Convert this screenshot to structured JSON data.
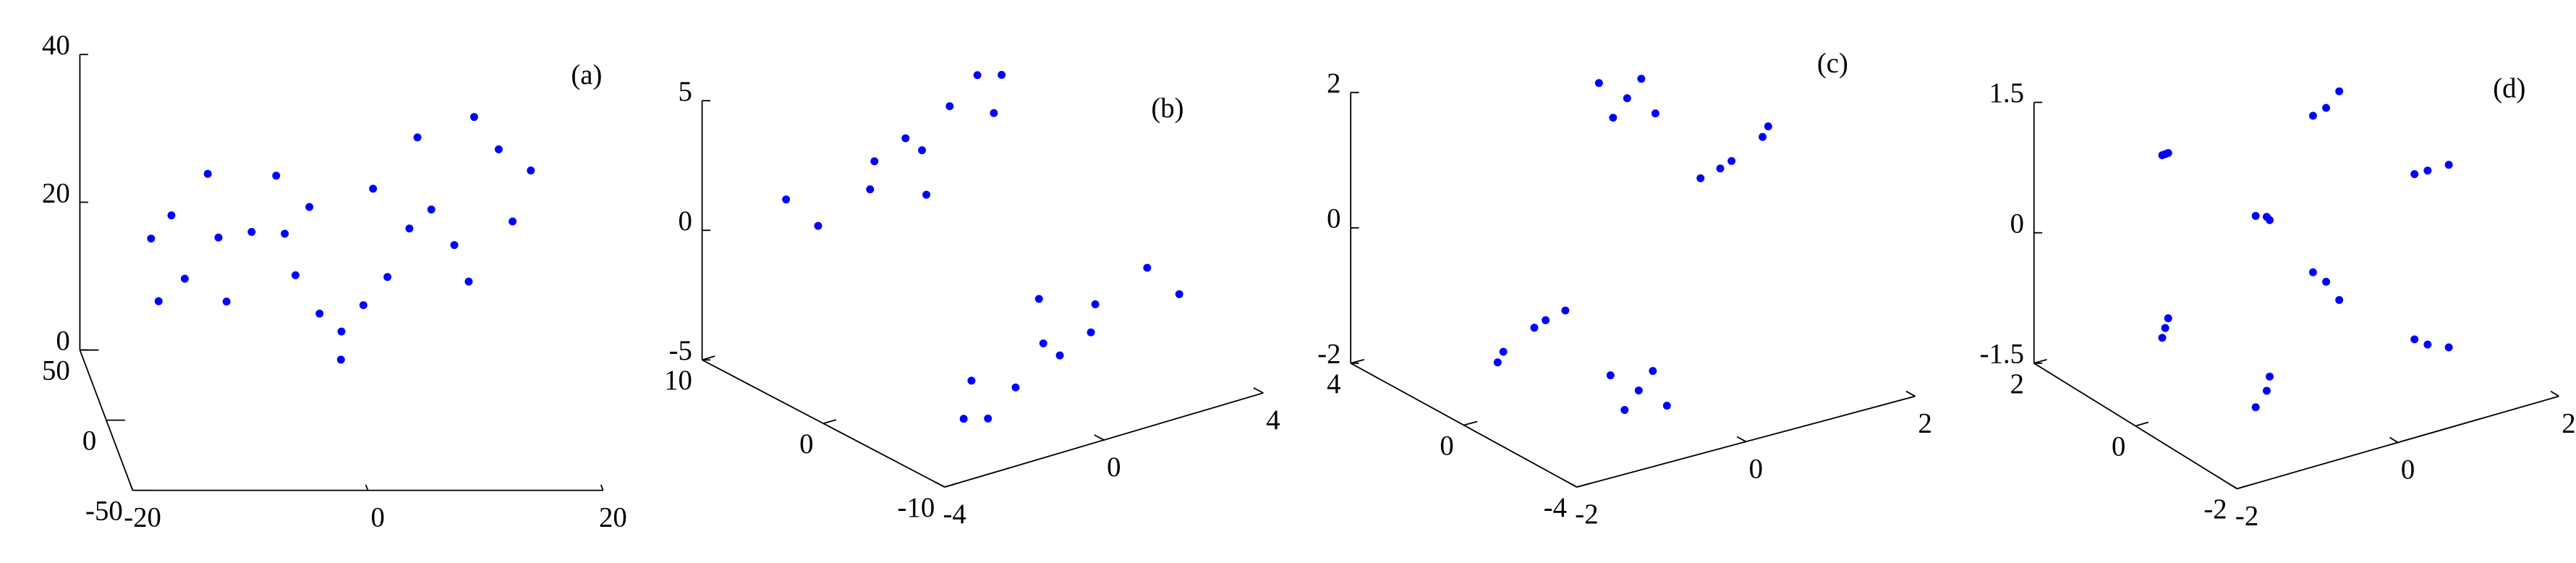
{
  "chart_data": [
    {
      "type": "scatter3d",
      "label": "(a)",
      "color": "#0000ff",
      "xlim": [
        -20,
        20
      ],
      "ylim": [
        -50,
        50
      ],
      "zlim": [
        0,
        40
      ],
      "xticks": [
        -20,
        0,
        20
      ],
      "yticks": [
        -50,
        0,
        50
      ],
      "zticks": [
        0,
        20,
        40
      ],
      "x": [
        -8,
        -15,
        -14,
        -10,
        -4,
        -3,
        -6,
        -12,
        -17,
        -16,
        -11,
        -5,
        8,
        14,
        15,
        11,
        4,
        3,
        7,
        12,
        17,
        10,
        6,
        0,
        -2,
        2,
        0
      ],
      "y": [
        -8,
        -12,
        -15,
        -5,
        -2,
        -6,
        -10,
        -14,
        -18,
        -10,
        -12,
        -4,
        8,
        14,
        10,
        4,
        2,
        7,
        12,
        16,
        20,
        9,
        5,
        0,
        -3,
        3,
        1
      ],
      "z": [
        27,
        30,
        22,
        17,
        20,
        30,
        35,
        36,
        28,
        18,
        27,
        26,
        27,
        34,
        25,
        18,
        19,
        30,
        36,
        38,
        30,
        22,
        25,
        12,
        15,
        15,
        8
      ]
    },
    {
      "type": "scatter3d",
      "label": "(b)",
      "color": "#0000ff",
      "xlim": [
        -4,
        4
      ],
      "ylim": [
        -10,
        10
      ],
      "zlim": [
        -5,
        5
      ],
      "xticks": [
        -4,
        0,
        4
      ],
      "yticks": [
        -10,
        0,
        10
      ],
      "zticks": [
        -5,
        0,
        5
      ],
      "x": [
        -1,
        -2,
        0,
        -1.5,
        1,
        2,
        -2.5,
        0.5,
        2,
        -0.5,
        1.5,
        1,
        2,
        0,
        1.5,
        -1,
        -2,
        2.5,
        -0.5,
        -2,
        0.5,
        -1.5
      ],
      "y": [
        6,
        7,
        5,
        4,
        6,
        7,
        8,
        8,
        5,
        3,
        4,
        -6,
        -7,
        -5,
        -4,
        -6,
        -7,
        -8,
        -8,
        -5,
        -3,
        -4
      ],
      "z": [
        1.2,
        0,
        2.5,
        3,
        3.5,
        4,
        1,
        2,
        4.5,
        1.5,
        3.5,
        -1.2,
        0,
        -2.5,
        -3,
        -3.5,
        -4,
        -1,
        -2,
        -4.5,
        -1.5,
        -3.5
      ]
    },
    {
      "type": "scatter3d",
      "label": "(c)",
      "color": "#0000ff",
      "xlim": [
        -2,
        2
      ],
      "ylim": [
        -4,
        4
      ],
      "zlim": [
        -2,
        2
      ],
      "xticks": [
        -2,
        0,
        2
      ],
      "yticks": [
        -4,
        0,
        4
      ],
      "zticks": [
        -2,
        0,
        2
      ],
      "x": [
        0.6,
        0.4,
        0.8,
        0.5,
        0.7,
        -0.6,
        -0.4,
        -0.8,
        -0.5,
        -0.7,
        1.5,
        1.2,
        1.8,
        1.4,
        1.9,
        -1.5,
        -1.2,
        -1.8,
        -1.4,
        -1.9
      ],
      "y": [
        2,
        2.4,
        1.6,
        2.2,
        1.8,
        -2,
        -2.4,
        -1.6,
        -2.2,
        -1.8,
        1,
        1.2,
        0.8,
        1.1,
        0.9,
        -1,
        -1.2,
        -0.8,
        -1.1,
        -0.9
      ],
      "z": [
        1.5,
        1.7,
        1.3,
        1.2,
        1.8,
        -1.5,
        -1.7,
        -1.3,
        -1.2,
        -1.8,
        0.5,
        0.3,
        0.8,
        0.4,
        0.9,
        -0.5,
        -0.3,
        -0.8,
        -0.4,
        -0.9
      ]
    },
    {
      "type": "scatter3d",
      "label": "(d)",
      "color": "#0000ff",
      "xlim": [
        -2,
        2
      ],
      "ylim": [
        -2,
        2
      ],
      "zlim": [
        -1.5,
        1.5
      ],
      "xticks": [
        -2,
        0,
        2
      ],
      "yticks": [
        -2,
        0,
        2
      ],
      "zticks": [
        -1.5,
        0,
        1.5
      ],
      "x": [
        1,
        1.1,
        0.9,
        1,
        1.1,
        0.9,
        1,
        1.2,
        0.9,
        1,
        1.2,
        0.9,
        -1,
        -1.1,
        -0.9,
        -1,
        -1.1,
        -0.9,
        -1,
        -1.2,
        -0.9,
        -1,
        -1.2,
        -0.9
      ],
      "y": [
        1,
        0.9,
        1.1,
        1,
        0.9,
        1.1,
        -1,
        -1.1,
        -0.9,
        -1,
        -1.1,
        -0.9,
        1,
        0.9,
        1.1,
        1,
        0.9,
        1.1,
        -1,
        -1.1,
        -0.9,
        -1,
        -1.1,
        -0.9
      ],
      "z": [
        1,
        1.2,
        0.9,
        -1,
        -1.2,
        -0.9,
        1,
        1.05,
        0.95,
        -1,
        -1.05,
        -0.95,
        1,
        1.05,
        0.95,
        -1,
        -1.05,
        -0.95,
        1,
        1.1,
        0.9,
        -1,
        -1.1,
        -0.9
      ]
    }
  ]
}
